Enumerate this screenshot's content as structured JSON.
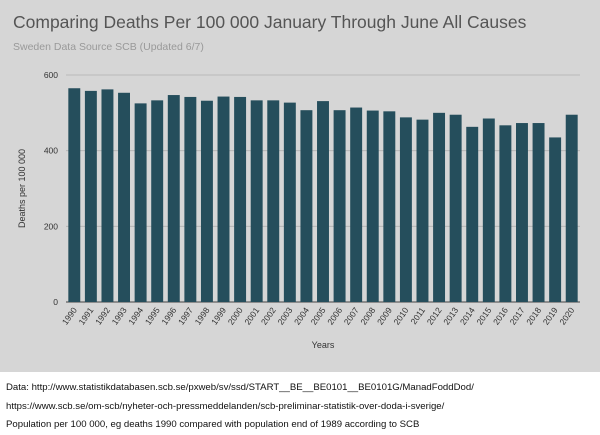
{
  "chart_data": {
    "type": "bar",
    "title": "Comparing Deaths Per 100 000 January Through June All Causes",
    "subtitle": "Sweden Data Source SCB (Updated 6/7)",
    "xlabel": "Years",
    "ylabel": "Deaths per 100 000",
    "ylim": [
      0,
      600
    ],
    "yticks": [
      0,
      200,
      400,
      600
    ],
    "grid": true,
    "bar_color": "#254e5c",
    "categories": [
      "1990",
      "1991",
      "1992",
      "1993",
      "1994",
      "1995",
      "1996",
      "1997",
      "1998",
      "1999",
      "2000",
      "2001",
      "2002",
      "2003",
      "2004",
      "2005",
      "2006",
      "2007",
      "2008",
      "2009",
      "2010",
      "2011",
      "2012",
      "2013",
      "2014",
      "2015",
      "2016",
      "2017",
      "2018",
      "2019",
      "2020"
    ],
    "values": [
      565,
      558,
      562,
      553,
      525,
      533,
      547,
      542,
      532,
      543,
      542,
      533,
      533,
      527,
      507,
      531,
      507,
      514,
      506,
      504,
      488,
      482,
      500,
      495,
      463,
      485,
      467,
      473,
      473,
      435,
      495
    ]
  },
  "notes": {
    "line1": "Data: http://www.statistikdatabasen.scb.se/pxweb/sv/ssd/START__BE__BE0101__BE0101G/ManadFoddDod/",
    "line2": "https://www.scb.se/om-scb/nyheter-och-pressmeddelanden/scb-preliminar-statistik-over-doda-i-sverige/",
    "line3": "Population per 100 000, eg deaths 1990 compared with population end of 1989 according to SCB"
  }
}
